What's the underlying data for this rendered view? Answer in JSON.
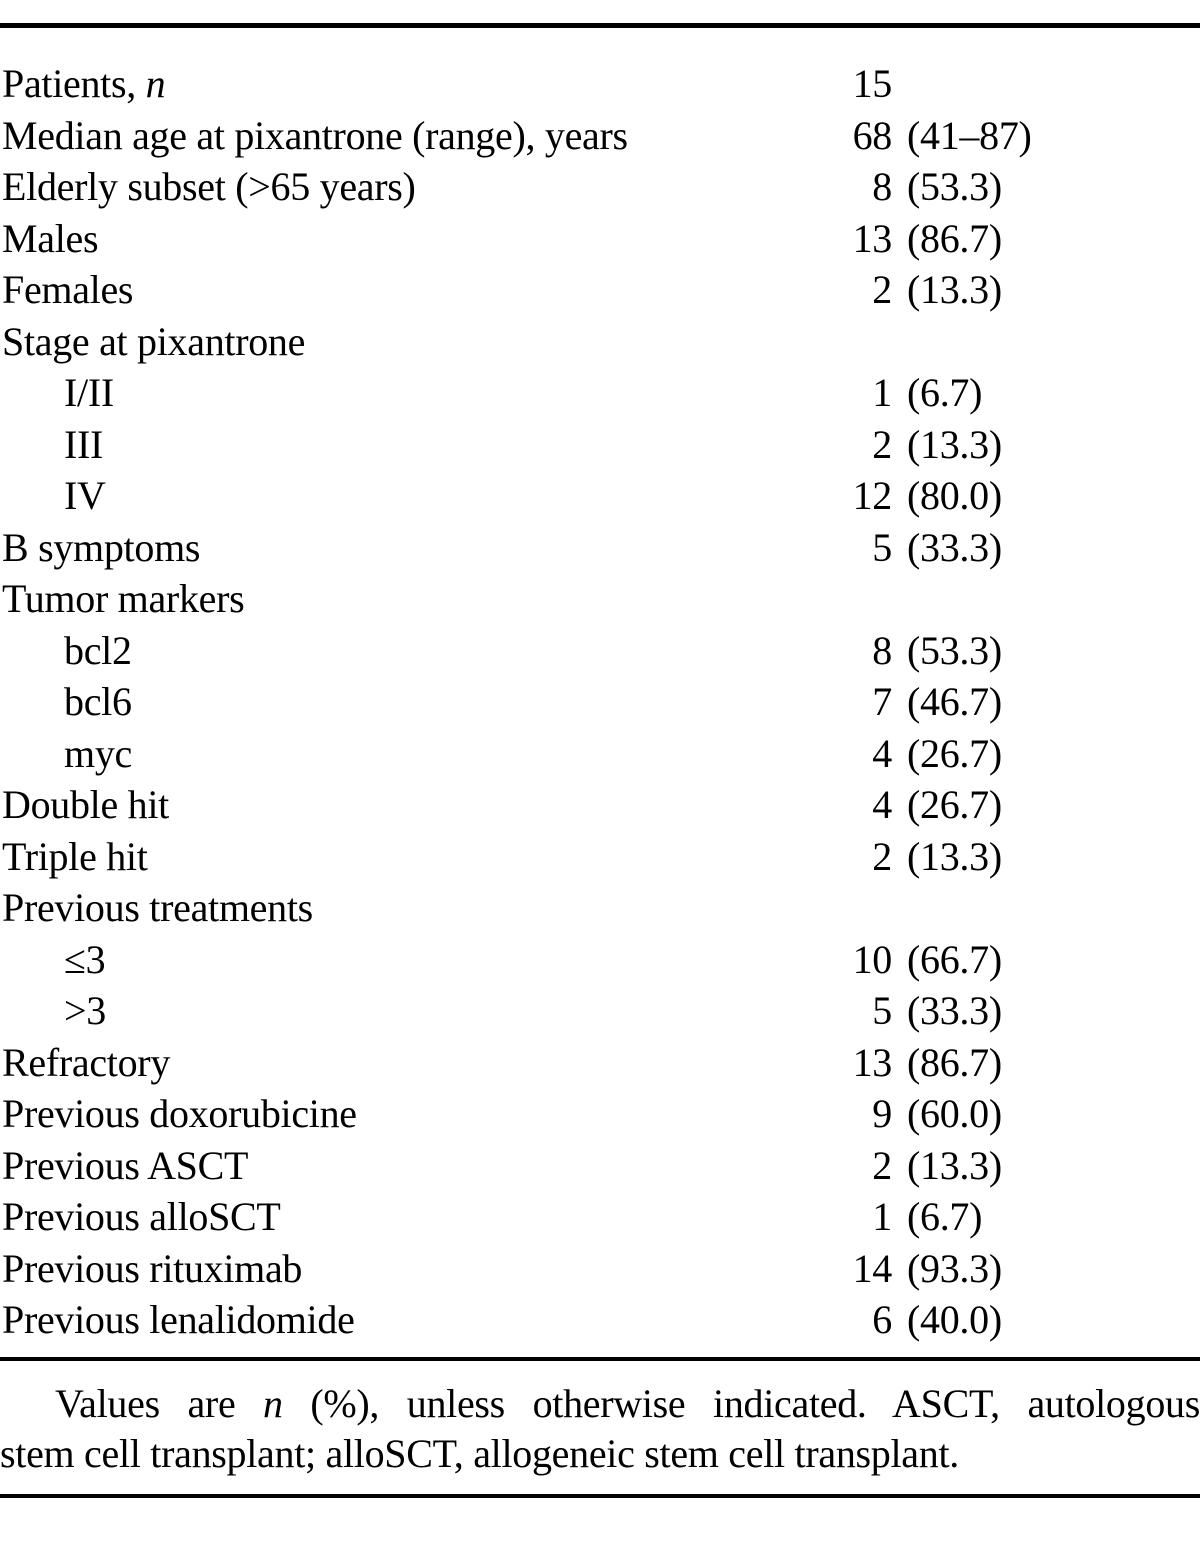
{
  "colors": {
    "text": "#000000",
    "background": "#ffffff",
    "rule": "#000000"
  },
  "table": {
    "value_format_note": "n (%)",
    "rows": [
      {
        "pre": "Patients, ",
        "italic": "n",
        "indent": false,
        "num": "15",
        "pct": ""
      },
      {
        "pre": "Median age at pixantrone (range), years",
        "italic": "",
        "indent": false,
        "num": "68",
        "pct": "(41–87)"
      },
      {
        "pre": "Elderly subset (>65 years)",
        "italic": "",
        "indent": false,
        "num": "8",
        "pct": "(53.3)"
      },
      {
        "pre": "Males",
        "italic": "",
        "indent": false,
        "num": "13",
        "pct": "(86.7)"
      },
      {
        "pre": "Females",
        "italic": "",
        "indent": false,
        "num": "2",
        "pct": "(13.3)"
      },
      {
        "pre": "Stage at pixantrone",
        "italic": "",
        "indent": false,
        "num": "",
        "pct": ""
      },
      {
        "pre": "I/II",
        "italic": "",
        "indent": true,
        "num": "1",
        "pct": "(6.7)"
      },
      {
        "pre": "III",
        "italic": "",
        "indent": true,
        "num": "2",
        "pct": "(13.3)"
      },
      {
        "pre": "IV",
        "italic": "",
        "indent": true,
        "num": "12",
        "pct": "(80.0)"
      },
      {
        "pre": "B symptoms",
        "italic": "",
        "indent": false,
        "num": "5",
        "pct": "(33.3)"
      },
      {
        "pre": "Tumor markers",
        "italic": "",
        "indent": false,
        "num": "",
        "pct": ""
      },
      {
        "pre": "bcl2",
        "italic": "",
        "indent": true,
        "num": "8",
        "pct": "(53.3)"
      },
      {
        "pre": "bcl6",
        "italic": "",
        "indent": true,
        "num": "7",
        "pct": "(46.7)"
      },
      {
        "pre": "myc",
        "italic": "",
        "indent": true,
        "num": "4",
        "pct": "(26.7)"
      },
      {
        "pre": "Double hit",
        "italic": "",
        "indent": false,
        "num": "4",
        "pct": "(26.7)"
      },
      {
        "pre": "Triple hit",
        "italic": "",
        "indent": false,
        "num": "2",
        "pct": "(13.3)"
      },
      {
        "pre": "Previous treatments",
        "italic": "",
        "indent": false,
        "num": "",
        "pct": ""
      },
      {
        "pre": "≤3",
        "italic": "",
        "indent": true,
        "num": "10",
        "pct": "(66.7)"
      },
      {
        "pre": ">3",
        "italic": "",
        "indent": true,
        "num": "5",
        "pct": "(33.3)"
      },
      {
        "pre": "Refractory",
        "italic": "",
        "indent": false,
        "num": "13",
        "pct": "(86.7)"
      },
      {
        "pre": "Previous doxorubicine",
        "italic": "",
        "indent": false,
        "num": "9",
        "pct": "(60.0)"
      },
      {
        "pre": "Previous ASCT",
        "italic": "",
        "indent": false,
        "num": "2",
        "pct": "(13.3)"
      },
      {
        "pre": "Previous alloSCT",
        "italic": "",
        "indent": false,
        "num": "1",
        "pct": "(6.7)"
      },
      {
        "pre": "Previous rituximab",
        "italic": "",
        "indent": false,
        "num": "14",
        "pct": "(93.3)"
      },
      {
        "pre": "Previous lenalidomide",
        "italic": "",
        "indent": false,
        "num": "6",
        "pct": "(40.0)"
      }
    ]
  },
  "footnote": {
    "line1_pre": "Values are ",
    "line1_italic": "n",
    "line1_post": " (%), unless otherwise indicated. ASCT, autologous",
    "line2": "stem cell transplant; alloSCT, allogeneic stem cell transplant."
  }
}
